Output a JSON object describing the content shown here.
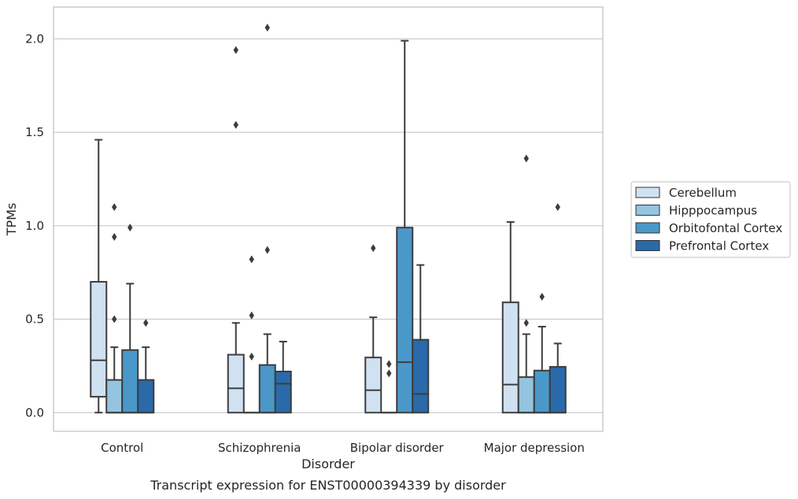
{
  "chart_data": {
    "type": "box",
    "xlabel": "Disorder",
    "ylabel": "TPMs",
    "caption": "Transcript expression for ENST00000394339 by disorder",
    "ylim": [
      -0.1,
      2.17
    ],
    "yticks": [
      "0.0",
      "0.5",
      "1.0",
      "1.5",
      "2.0"
    ],
    "grid": true,
    "legend_position": "right",
    "categories": [
      "Control",
      "Schizophrenia",
      "Bipolar disorder",
      "Major depression"
    ],
    "series": [
      {
        "name": "Cerebellum",
        "color": "#d0e1f2",
        "boxes": [
          {
            "q1": 0.085,
            "median": 0.28,
            "q3": 0.7,
            "whisker_low": 0.0,
            "whisker_high": 1.46,
            "outliers": []
          },
          {
            "q1": 0.0,
            "median": 0.13,
            "q3": 0.31,
            "whisker_low": 0.0,
            "whisker_high": 0.48,
            "outliers": [
              1.54,
              1.94
            ]
          },
          {
            "q1": 0.0,
            "median": 0.12,
            "q3": 0.295,
            "whisker_low": 0.0,
            "whisker_high": 0.51,
            "outliers": [
              0.88
            ]
          },
          {
            "q1": 0.0,
            "median": 0.15,
            "q3": 0.59,
            "whisker_low": 0.0,
            "whisker_high": 1.02,
            "outliers": []
          }
        ]
      },
      {
        "name": "Hipppocampus",
        "color": "#94c4df",
        "boxes": [
          {
            "q1": 0.0,
            "median": 0.0,
            "q3": 0.175,
            "whisker_low": 0.0,
            "whisker_high": 0.35,
            "outliers": [
              0.5,
              0.94,
              1.1
            ]
          },
          {
            "q1": 0.0,
            "median": 0.0,
            "q3": 0.0,
            "whisker_low": 0.0,
            "whisker_high": 0.0,
            "outliers": [
              0.3,
              0.52,
              0.82
            ]
          },
          {
            "q1": 0.0,
            "median": 0.0,
            "q3": 0.0,
            "whisker_low": 0.0,
            "whisker_high": 0.0,
            "outliers": [
              0.21,
              0.26
            ]
          },
          {
            "q1": 0.0,
            "median": 0.0,
            "q3": 0.19,
            "whisker_low": 0.0,
            "whisker_high": 0.42,
            "outliers": [
              0.48,
              1.36
            ]
          }
        ]
      },
      {
        "name": "Orbitofontal Cortex",
        "color": "#4a98c9",
        "boxes": [
          {
            "q1": 0.0,
            "median": 0.0,
            "q3": 0.335,
            "whisker_low": 0.0,
            "whisker_high": 0.69,
            "outliers": [
              0.99
            ]
          },
          {
            "q1": 0.0,
            "median": 0.0,
            "q3": 0.255,
            "whisker_low": 0.0,
            "whisker_high": 0.42,
            "outliers": [
              0.87,
              2.06
            ]
          },
          {
            "q1": 0.0,
            "median": 0.27,
            "q3": 0.99,
            "whisker_low": 0.0,
            "whisker_high": 1.99,
            "outliers": []
          },
          {
            "q1": 0.0,
            "median": 0.0,
            "q3": 0.225,
            "whisker_low": 0.0,
            "whisker_high": 0.46,
            "outliers": [
              0.62
            ]
          }
        ]
      },
      {
        "name": "Prefrontal Cortex",
        "color": "#2a6aaa",
        "boxes": [
          {
            "q1": 0.0,
            "median": 0.0,
            "q3": 0.175,
            "whisker_low": 0.0,
            "whisker_high": 0.35,
            "outliers": [
              0.48
            ]
          },
          {
            "q1": 0.0,
            "median": 0.155,
            "q3": 0.22,
            "whisker_low": 0.0,
            "whisker_high": 0.38,
            "outliers": []
          },
          {
            "q1": 0.0,
            "median": 0.1,
            "q3": 0.39,
            "whisker_low": 0.0,
            "whisker_high": 0.79,
            "outliers": []
          },
          {
            "q1": 0.0,
            "median": 0.0,
            "q3": 0.245,
            "whisker_low": 0.0,
            "whisker_high": 0.37,
            "outliers": [
              1.1
            ]
          }
        ]
      }
    ]
  }
}
